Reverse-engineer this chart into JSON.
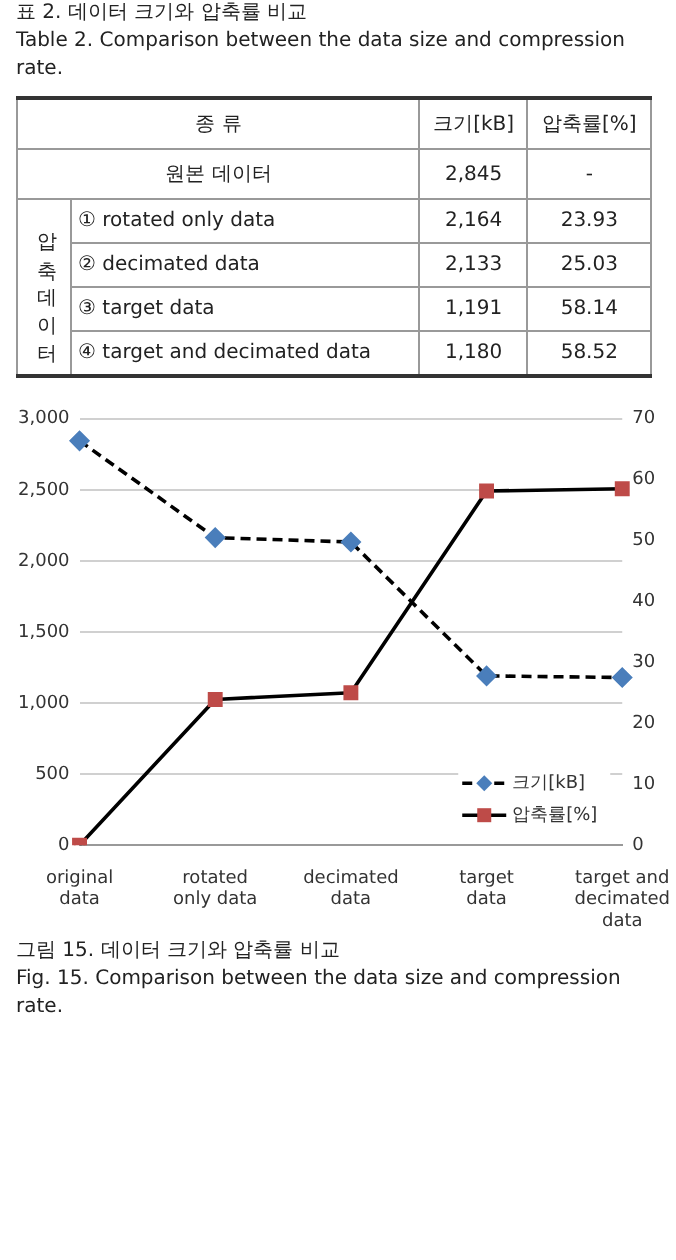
{
  "chart_data": {
    "type": "line",
    "categories": [
      "original\ndata",
      "rotated\nonly data",
      "decimated\ndata",
      "target\ndata",
      "target and\ndecimated\ndata"
    ],
    "series": [
      {
        "name": "크기[kB]",
        "color": "#4a7ebb",
        "values": [
          2845,
          2164,
          2133,
          1191,
          1180
        ],
        "marker": "diamond",
        "line_style": "dashed"
      },
      {
        "name": "압축률[%]",
        "color": "#be4b48",
        "values": [
          0,
          23.93,
          25.03,
          58.14,
          58.52
        ],
        "marker": "square",
        "line_style": "solid",
        "axis": "y2"
      }
    ],
    "ylim": [
      0,
      3000
    ],
    "yticks": [
      0,
      500,
      {
        "value": 1000,
        "label": "1,000"
      },
      {
        "value": 1500,
        "label": "1,500"
      },
      {
        "value": 2000,
        "label": "2,000"
      },
      {
        "value": 2500,
        "label": "2,500"
      },
      {
        "value": 3000,
        "label": "3,000"
      }
    ],
    "y2lim": [
      0,
      70
    ],
    "y2ticks": [
      0,
      10,
      20,
      30,
      40,
      50,
      60,
      70
    ],
    "grid": "y",
    "legend": "bottom right",
    "annotations": [
      "표  2.  데이터 크기와 압축률 비교",
      "Table 2.  Comparison between the data size and compression rate.",
      "종 류",
      "크기[kB]",
      "압축률[%]",
      "원본 데이터",
      "2,845",
      "-",
      "압축데이터",
      "① rotated only data",
      "2,164",
      "23.93",
      "② decimated data",
      "2,133",
      "25.03",
      "③ target data",
      "1,191",
      "58.14",
      "④ target and decimated data",
      "1,180",
      "58.52",
      "그림  15.  데이터 크기와 압축률 비교",
      "Fig.  15.  Comparison between the data size and compression rate."
    ]
  }
}
